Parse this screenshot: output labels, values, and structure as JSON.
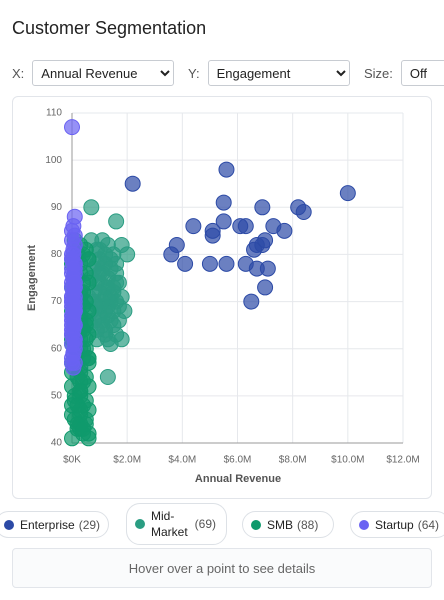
{
  "header": {
    "title": "Customer Segmentation"
  },
  "controls": [
    {
      "label": "X:",
      "value": "Annual Revenue"
    },
    {
      "label": "Y:",
      "value": "Engagement"
    },
    {
      "label": "Size:",
      "value": "Off"
    }
  ],
  "chart_data": {
    "type": "scatter",
    "x_label": "Annual Revenue",
    "y_label": "Engagement",
    "xlim": [
      0,
      12
    ],
    "xticks": [
      {
        "value": 0,
        "label": "$0K"
      },
      {
        "value": 2,
        "label": "$2.0M"
      },
      {
        "value": 4,
        "label": "$4.0M"
      },
      {
        "value": 6,
        "label": "$6.0M"
      },
      {
        "value": 8,
        "label": "$8.0M"
      },
      {
        "value": 10,
        "label": "$10.0M"
      },
      {
        "value": 12,
        "label": "$12.0M"
      }
    ],
    "ylim": [
      40,
      110
    ],
    "yticks": [
      40,
      50,
      60,
      70,
      80,
      90,
      100,
      110
    ],
    "grid": true,
    "series": [
      {
        "name": "Enterprise",
        "count_label": "(29)",
        "color": "#2c4aa6",
        "x": [
          2.2,
          5.6,
          10.0,
          5.5,
          6.9,
          8.2,
          8.4,
          4.4,
          5.5,
          5.1,
          5.1,
          6.1,
          6.3,
          7.3,
          7.7,
          3.8,
          7.0,
          6.7,
          6.9,
          3.6,
          4.1,
          5.0,
          5.6,
          6.3,
          6.7,
          7.1,
          6.5,
          7.0,
          6.6
        ],
        "values": [
          95,
          98,
          93,
          91,
          90,
          90,
          89,
          86,
          87,
          85,
          84,
          86,
          86,
          86,
          85,
          82,
          83,
          82,
          82,
          80,
          78,
          78,
          78,
          78,
          77,
          77,
          70,
          73,
          81
        ]
      },
      {
        "name": "Mid-Market",
        "count_label": "(69)",
        "color": "#2a9d82",
        "x": [
          0.7,
          1.6,
          0.7,
          1.1,
          1.8,
          0.9,
          1.3,
          2.0,
          1.5,
          0.6,
          1.0,
          1.2,
          1.6,
          0.8,
          1.4,
          1.1,
          0.7,
          1.3,
          1.7,
          0.9,
          1.5,
          1.2,
          0.8,
          1.0,
          1.8,
          0.6,
          1.4,
          1.1,
          1.6,
          0.9,
          1.3,
          0.7,
          1.2,
          1.5,
          1.9,
          1.0,
          0.8,
          1.4,
          1.7,
          1.1,
          1.2,
          0.9,
          1.6,
          1.3,
          1.8,
          1.4,
          1.3,
          1.0,
          1.2,
          0.9,
          1.4,
          1.1,
          1.6,
          1.0,
          1.2,
          0.8,
          1.5,
          1.7,
          1.0,
          1.3,
          1.1,
          0.7,
          1.5,
          1.2,
          0.9,
          1.4,
          1.0,
          1.6,
          1.3
        ],
        "values": [
          90,
          87,
          83,
          83,
          82,
          81,
          82,
          80,
          80,
          79,
          79,
          78,
          78,
          77,
          77,
          76,
          75,
          75,
          74,
          74,
          73,
          73,
          72,
          72,
          71,
          71,
          71,
          70,
          70,
          69,
          69,
          68,
          68,
          68,
          68,
          67,
          66,
          66,
          66,
          65,
          64,
          64,
          63,
          62,
          62,
          61,
          54,
          81,
          80,
          78,
          79,
          77,
          76,
          74,
          71,
          70,
          72,
          69,
          69,
          67,
          66,
          65,
          65,
          63,
          62,
          70,
          76,
          74,
          73
        ]
      },
      {
        "name": "SMB",
        "count_label": "(88)",
        "color": "#0f9a6c",
        "x": [
          0.1,
          0.3,
          0.5,
          0.2,
          0.4,
          0.6,
          0.0,
          0.3,
          0.1,
          0.3,
          0.5,
          0.2,
          0.4,
          0.6,
          0.0,
          0.3,
          0.1,
          0.3,
          0.5,
          0.2,
          0.4,
          0.6,
          0.0,
          0.3,
          0.1,
          0.3,
          0.5,
          0.2,
          0.4,
          0.6,
          0.0,
          0.3,
          0.1,
          0.3,
          0.5,
          0.2,
          0.4,
          0.6,
          0.0,
          0.3,
          0.1,
          0.3,
          0.5,
          0.2,
          0.4,
          0.6,
          0.0,
          0.3,
          0.1,
          0.3,
          0.5,
          0.2,
          0.4,
          0.6,
          0.0,
          0.3,
          0.1,
          0.3,
          0.5,
          0.2,
          0.4,
          0.6,
          0.0,
          0.3,
          0.1,
          0.3,
          0.5,
          0.2,
          0.4,
          0.6,
          0.0,
          0.3,
          0.1,
          0.3,
          0.5,
          0.2,
          0.4,
          0.6,
          0.0,
          0.3,
          0.1,
          0.3,
          0.5,
          0.2,
          0.4,
          0.6,
          0.0,
          0.3
        ],
        "values": [
          83,
          82,
          81,
          80,
          80,
          79,
          78,
          78,
          77,
          76,
          76,
          75,
          74,
          74,
          73,
          72,
          72,
          71,
          70,
          70,
          69,
          68,
          68,
          67,
          66,
          66,
          65,
          64,
          64,
          63,
          62,
          62,
          61,
          60,
          60,
          59,
          58,
          58,
          57,
          56,
          56,
          55,
          54,
          54,
          53,
          52,
          52,
          51,
          50,
          50,
          49,
          48,
          48,
          47,
          46,
          46,
          45,
          44,
          44,
          43,
          42,
          42,
          41,
          43,
          75,
          70,
          66,
          63,
          60,
          57,
          55,
          53,
          49,
          47,
          45,
          44,
          43,
          41,
          48,
          51,
          68,
          65,
          62,
          59,
          72,
          58,
          61,
          64
        ]
      },
      {
        "name": "Startup",
        "count_label": "(64)",
        "color": "#6a62f2",
        "x": [
          0.0,
          0.1,
          0.05,
          0.0,
          0.1,
          0.05,
          0.0,
          0.1,
          0.0,
          0.1,
          0.05,
          0.0,
          0.1,
          0.05,
          0.0,
          0.1,
          0.0,
          0.1,
          0.05,
          0.0,
          0.1,
          0.05,
          0.0,
          0.1,
          0.0,
          0.1,
          0.05,
          0.0,
          0.1,
          0.05,
          0.0,
          0.1,
          0.0,
          0.1,
          0.05,
          0.0,
          0.1,
          0.05,
          0.0,
          0.1,
          0.0,
          0.1,
          0.05,
          0.0,
          0.1,
          0.05,
          0.0,
          0.1,
          0.0,
          0.1,
          0.05,
          0.0,
          0.1,
          0.05,
          0.0,
          0.1,
          0.0,
          0.1,
          0.05,
          0.0,
          0.1,
          0.05,
          0.0,
          0.1
        ],
        "values": [
          107,
          88,
          86,
          85,
          84,
          80,
          79,
          78,
          77,
          76,
          75,
          74,
          73,
          72,
          71,
          70,
          69,
          68,
          67,
          66,
          65,
          64,
          63,
          62,
          61,
          60,
          59,
          58,
          57,
          56,
          80,
          78,
          76,
          74,
          72,
          70,
          68,
          66,
          64,
          62,
          79,
          77,
          75,
          73,
          71,
          69,
          67,
          65,
          63,
          61,
          59,
          57,
          82,
          81,
          83,
          73,
          71,
          69,
          67,
          65,
          74,
          72,
          70,
          68
        ]
      }
    ]
  },
  "info": "Hover over a point to see details"
}
